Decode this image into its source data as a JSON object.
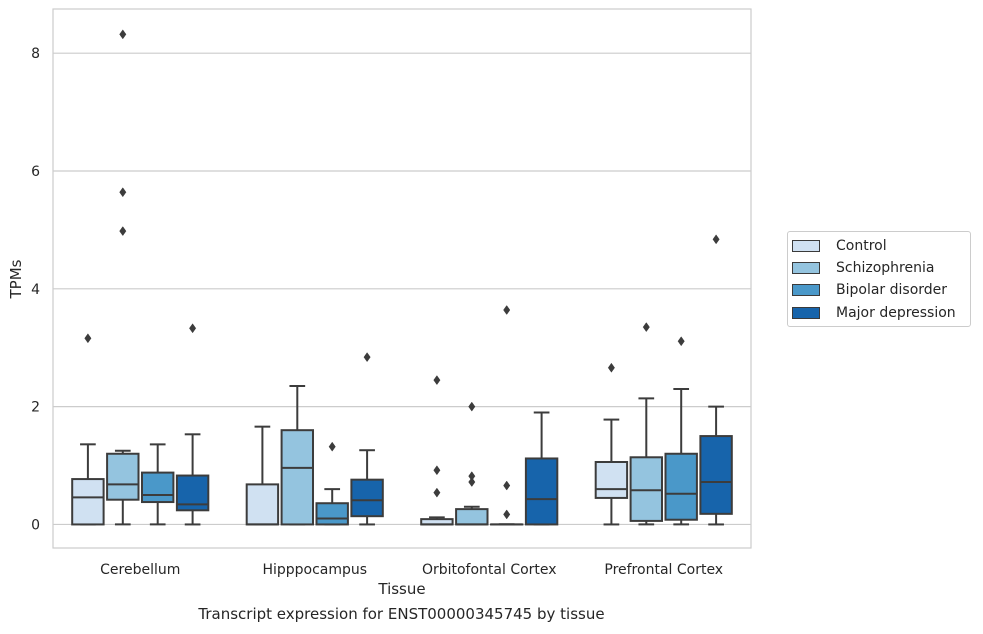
{
  "chart_data": {
    "type": "boxplot",
    "title": "",
    "xlabel": "Tissue",
    "ylabel": "TPMs",
    "caption": "Transcript expression for ENST00000345745 by tissue",
    "ylim": [
      -0.4,
      8.75
    ],
    "yticks": [
      0,
      2,
      4,
      6,
      8
    ],
    "grid": "horizontal",
    "legend_position": "right",
    "categories": [
      "Cerebellum",
      "Hipppocampus",
      "Orbitofontal Cortex",
      "Prefrontal Cortex"
    ],
    "series": [
      {
        "name": "Control",
        "color": "#d0e1f2",
        "boxes": [
          {
            "whislo": 0,
            "q1": 0,
            "med": 0.46,
            "q3": 0.77,
            "whishi": 1.36,
            "fliers": [
              3.16
            ]
          },
          {
            "whislo": 0,
            "q1": 0,
            "med": 0,
            "q3": 0.68,
            "whishi": 1.66,
            "fliers": []
          },
          {
            "whislo": 0,
            "q1": 0,
            "med": 0,
            "q3": 0.09,
            "whishi": 0.12,
            "fliers": [
              0.54,
              0.92,
              2.45
            ]
          },
          {
            "whislo": 0,
            "q1": 0.45,
            "med": 0.6,
            "q3": 1.06,
            "whishi": 1.78,
            "fliers": [
              2.66
            ]
          }
        ]
      },
      {
        "name": "Schizophrenia",
        "color": "#94c4df",
        "boxes": [
          {
            "whislo": 0,
            "q1": 0.42,
            "med": 0.68,
            "q3": 1.2,
            "whishi": 1.25,
            "fliers": [
              4.98,
              5.64,
              8.32
            ]
          },
          {
            "whislo": 0,
            "q1": 0,
            "med": 0.96,
            "q3": 1.6,
            "whishi": 2.35,
            "fliers": []
          },
          {
            "whislo": 0,
            "q1": 0,
            "med": 0,
            "q3": 0.26,
            "whishi": 0.3,
            "fliers": [
              0.72,
              0.82,
              2.0
            ]
          },
          {
            "whislo": 0,
            "q1": 0.06,
            "med": 0.58,
            "q3": 1.14,
            "whishi": 2.14,
            "fliers": [
              3.35
            ]
          }
        ]
      },
      {
        "name": "Bipolar disorder",
        "color": "#4a98c9",
        "boxes": [
          {
            "whislo": 0,
            "q1": 0.38,
            "med": 0.5,
            "q3": 0.88,
            "whishi": 1.36,
            "fliers": []
          },
          {
            "whislo": 0,
            "q1": 0,
            "med": 0.1,
            "q3": 0.36,
            "whishi": 0.6,
            "fliers": [
              1.32
            ]
          },
          {
            "whislo": 0,
            "q1": 0,
            "med": 0,
            "q3": 0,
            "whishi": 0,
            "fliers": [
              0.17,
              0.66,
              3.64
            ]
          },
          {
            "whislo": 0,
            "q1": 0.08,
            "med": 0.52,
            "q3": 1.2,
            "whishi": 2.3,
            "fliers": [
              3.11
            ]
          }
        ]
      },
      {
        "name": "Major depression",
        "color": "#1764ab",
        "boxes": [
          {
            "whislo": 0,
            "q1": 0.24,
            "med": 0.34,
            "q3": 0.83,
            "whishi": 1.53,
            "fliers": [
              3.33
            ]
          },
          {
            "whislo": 0,
            "q1": 0.14,
            "med": 0.41,
            "q3": 0.76,
            "whishi": 1.26,
            "fliers": [
              2.84
            ]
          },
          {
            "whislo": 0,
            "q1": 0,
            "med": 0.43,
            "q3": 1.12,
            "whishi": 1.9,
            "fliers": []
          },
          {
            "whislo": 0,
            "q1": 0.18,
            "med": 0.72,
            "q3": 1.5,
            "whishi": 2.0,
            "fliers": [
              4.84
            ]
          }
        ]
      }
    ]
  }
}
